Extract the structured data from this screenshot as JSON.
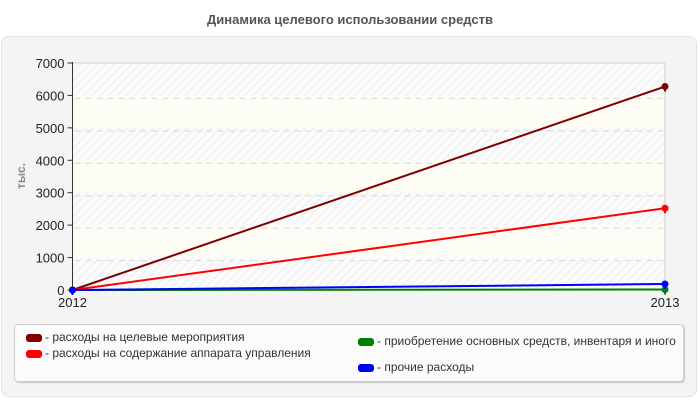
{
  "title": "Динамика целевого использовании средств",
  "chart_data": {
    "type": "line",
    "title": "Динамика целевого использовании средств",
    "xlabel": "",
    "ylabel": "тыс.",
    "x": [
      "2012",
      "2013"
    ],
    "ylim": [
      0,
      7000
    ],
    "yticks": [
      "0",
      "1000",
      "2000",
      "3000",
      "4000",
      "5000",
      "6000",
      "7000"
    ],
    "grid": true,
    "legend_position": "bottom",
    "series": [
      {
        "name": "расходы на целевые мероприятия",
        "color": "#800000",
        "values": [
          0,
          6275
        ]
      },
      {
        "name": "расходы на содержание аппарата управления",
        "color": "#ff0000",
        "values": [
          0,
          2520
        ]
      },
      {
        "name": "приобретение основных средств, инвентаря и иного",
        "color": "#008000",
        "values": [
          0,
          15
        ]
      },
      {
        "name": "прочие расходы",
        "color": "#0000ff",
        "values": [
          0,
          185
        ]
      }
    ]
  },
  "legend": {
    "items": [
      {
        "label": "- расходы на целевые мероприятия",
        "color": "#800000"
      },
      {
        "label": "- расходы на содержание аппарата управления",
        "color": "#ff0000"
      },
      {
        "label": "- приобретение основных средств, инвентаря и иного",
        "color": "#008000"
      },
      {
        "label": "- прочие расходы",
        "color": "#0000ff"
      }
    ]
  }
}
